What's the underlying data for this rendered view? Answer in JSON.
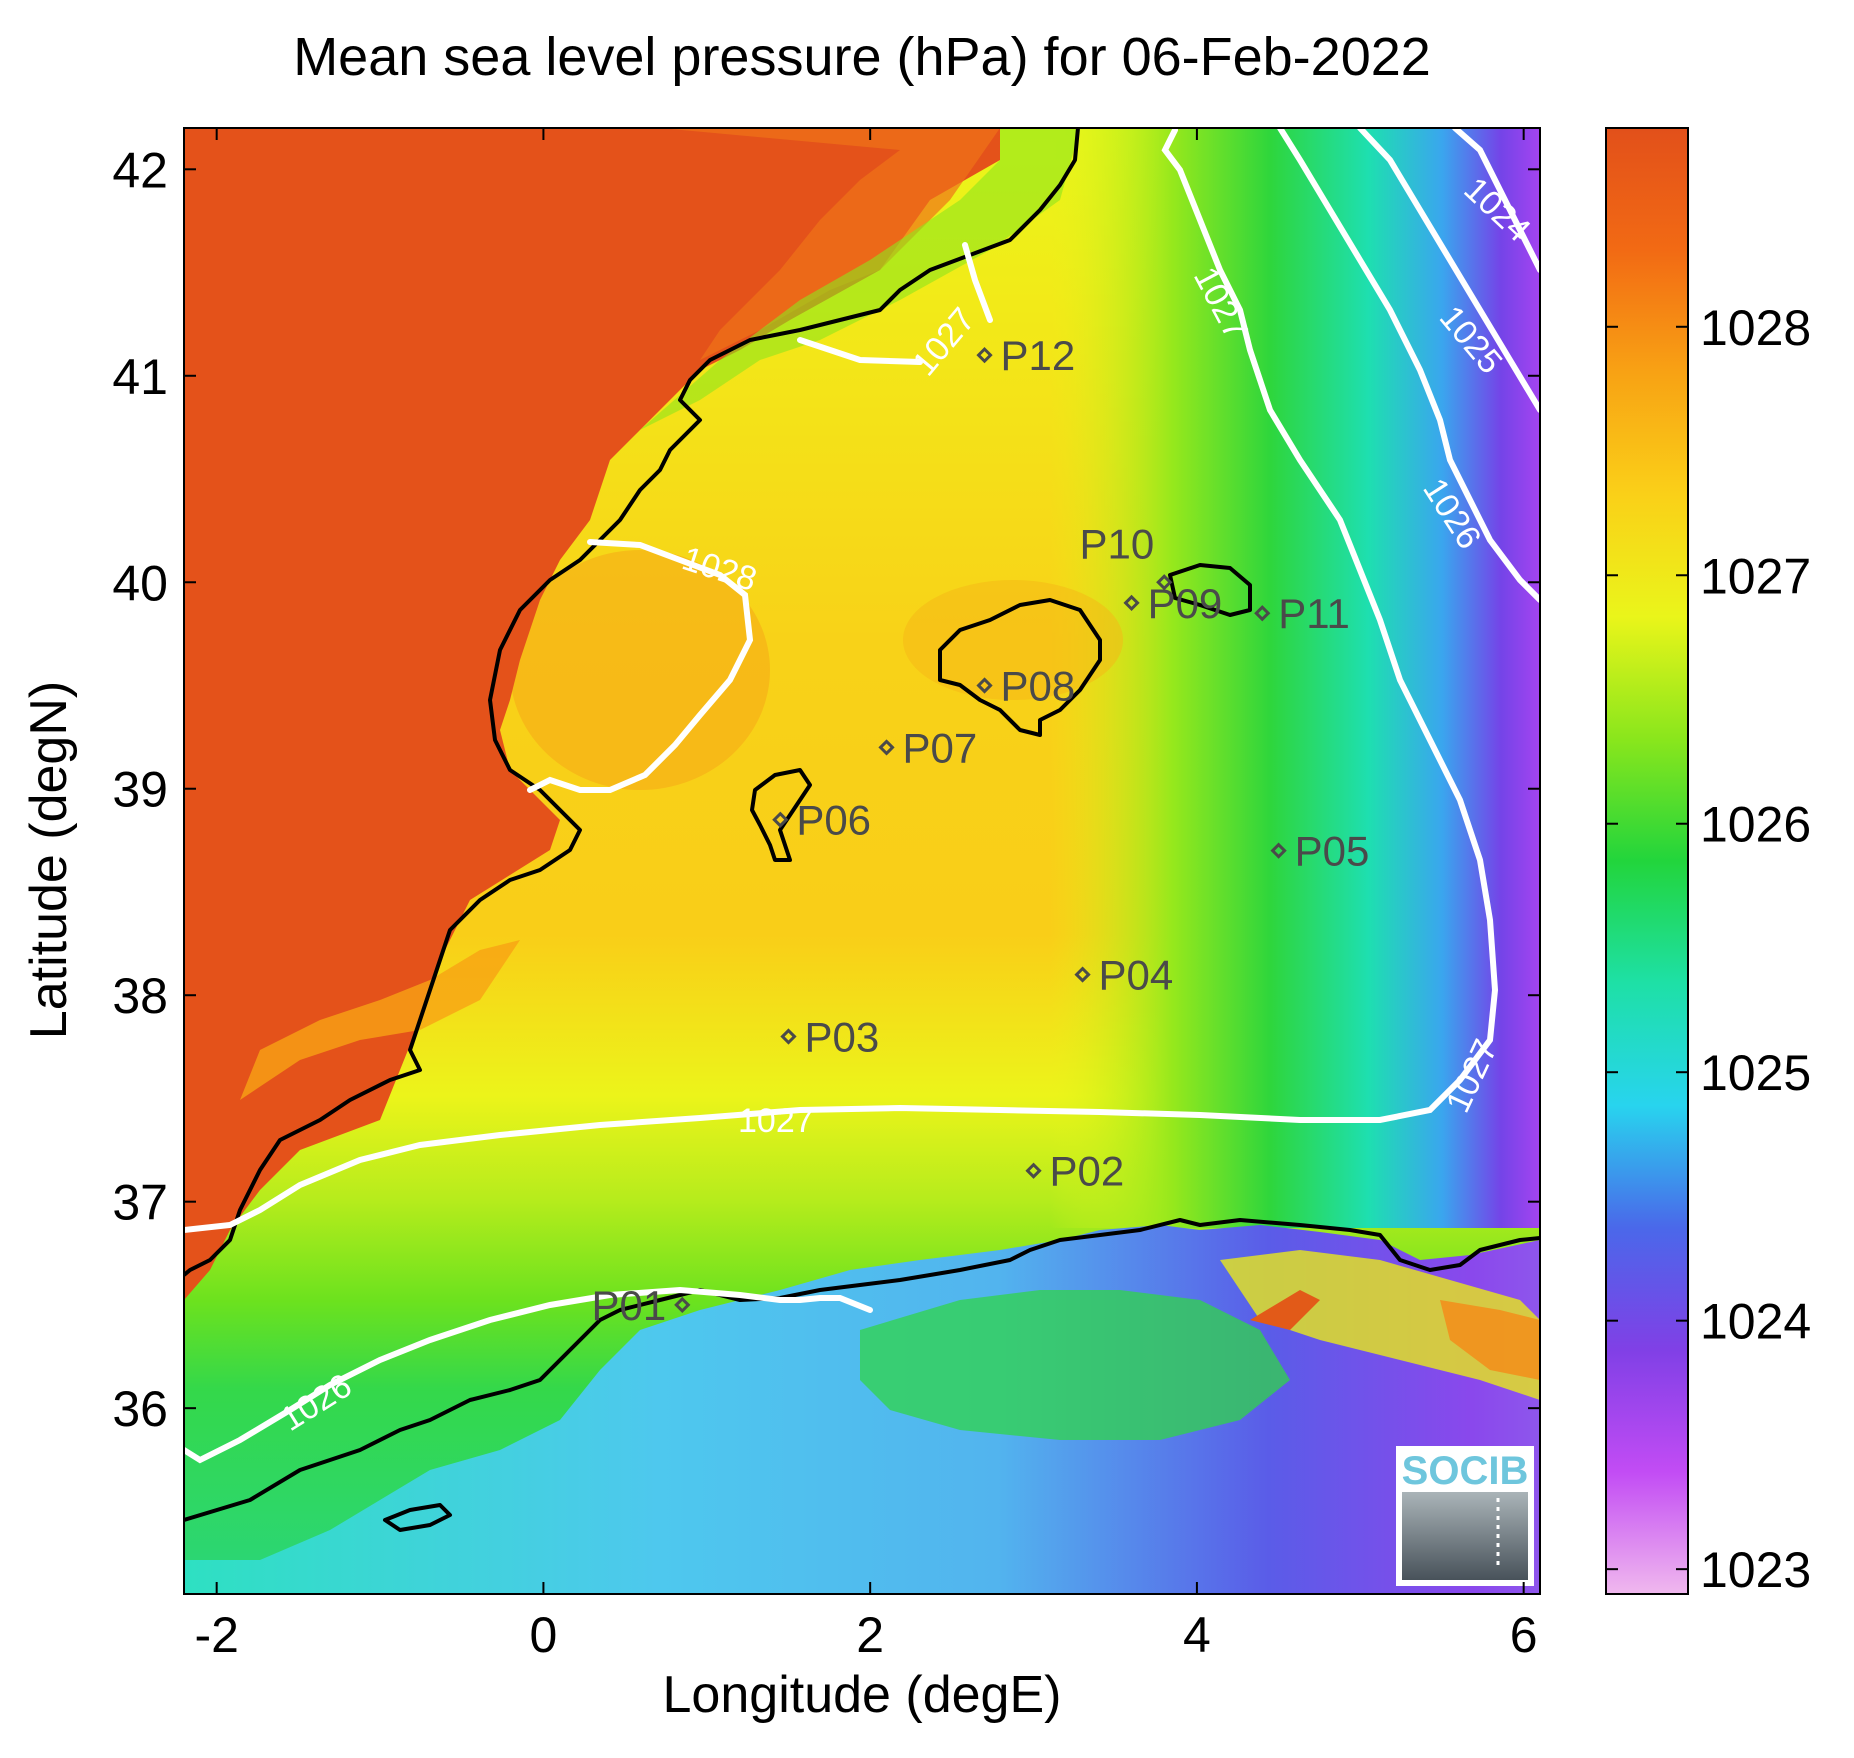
{
  "title": "Mean sea level pressure (hPa) for 06-Feb-2022",
  "xlabel": "Longitude (degE)",
  "ylabel": "Latitude (degN)",
  "x_ticks": [
    "-2",
    "0",
    "2",
    "4",
    "6"
  ],
  "y_ticks": [
    "36",
    "37",
    "38",
    "39",
    "40",
    "41",
    "42"
  ],
  "colorbar": {
    "ticks": [
      "1023",
      "1024",
      "1025",
      "1026",
      "1027",
      "1028"
    ],
    "range": [
      1022.9,
      1028.8
    ],
    "colors": [
      "#f0b8ee",
      "#c24cf4",
      "#8040e6",
      "#4a68ea",
      "#28d4ee",
      "#1ee0a6",
      "#22d53c",
      "#8ae61c",
      "#eaf51a",
      "#fad018",
      "#f8a214",
      "#f26a14",
      "#e2501a"
    ]
  },
  "contour_labels": [
    {
      "text": "1028"
    },
    {
      "text": "1027"
    },
    {
      "text": "1027"
    },
    {
      "text": "1027"
    },
    {
      "text": "1027"
    },
    {
      "text": "1026"
    },
    {
      "text": "1026"
    },
    {
      "text": "1025"
    },
    {
      "text": "1024"
    }
  ],
  "stations": [
    {
      "name": "P01",
      "lon": 0.85,
      "lat": 36.5
    },
    {
      "name": "P02",
      "lon": 3.0,
      "lat": 37.15
    },
    {
      "name": "P03",
      "lon": 1.5,
      "lat": 37.8
    },
    {
      "name": "P04",
      "lon": 3.3,
      "lat": 38.1
    },
    {
      "name": "P05",
      "lon": 4.5,
      "lat": 38.7
    },
    {
      "name": "P06",
      "lon": 1.45,
      "lat": 38.85
    },
    {
      "name": "P07",
      "lon": 2.1,
      "lat": 39.2
    },
    {
      "name": "P08",
      "lon": 2.7,
      "lat": 39.5
    },
    {
      "name": "P09",
      "lon": 3.6,
      "lat": 39.9
    },
    {
      "name": "P10",
      "lon": 3.8,
      "lat": 40.0
    },
    {
      "name": "P11",
      "lon": 4.4,
      "lat": 39.85
    },
    {
      "name": "P12",
      "lon": 2.7,
      "lat": 41.1
    }
  ],
  "logo": "SOCIB",
  "chart_data": {
    "type": "heatmap",
    "title": "Mean sea level pressure (hPa) for 06-Feb-2022",
    "xlabel": "Longitude (degE)",
    "ylabel": "Latitude (degN)",
    "xlim": [
      -2.2,
      6.1
    ],
    "ylim": [
      35.1,
      42.2
    ],
    "x_ticks": [
      -2,
      0,
      2,
      4,
      6
    ],
    "y_ticks": [
      36,
      37,
      38,
      39,
      40,
      41,
      42
    ],
    "colorbar_ticks": [
      1023,
      1024,
      1025,
      1026,
      1027,
      1028
    ],
    "contour_levels": [
      1024,
      1025,
      1026,
      1027,
      1028
    ],
    "grid": false
  }
}
